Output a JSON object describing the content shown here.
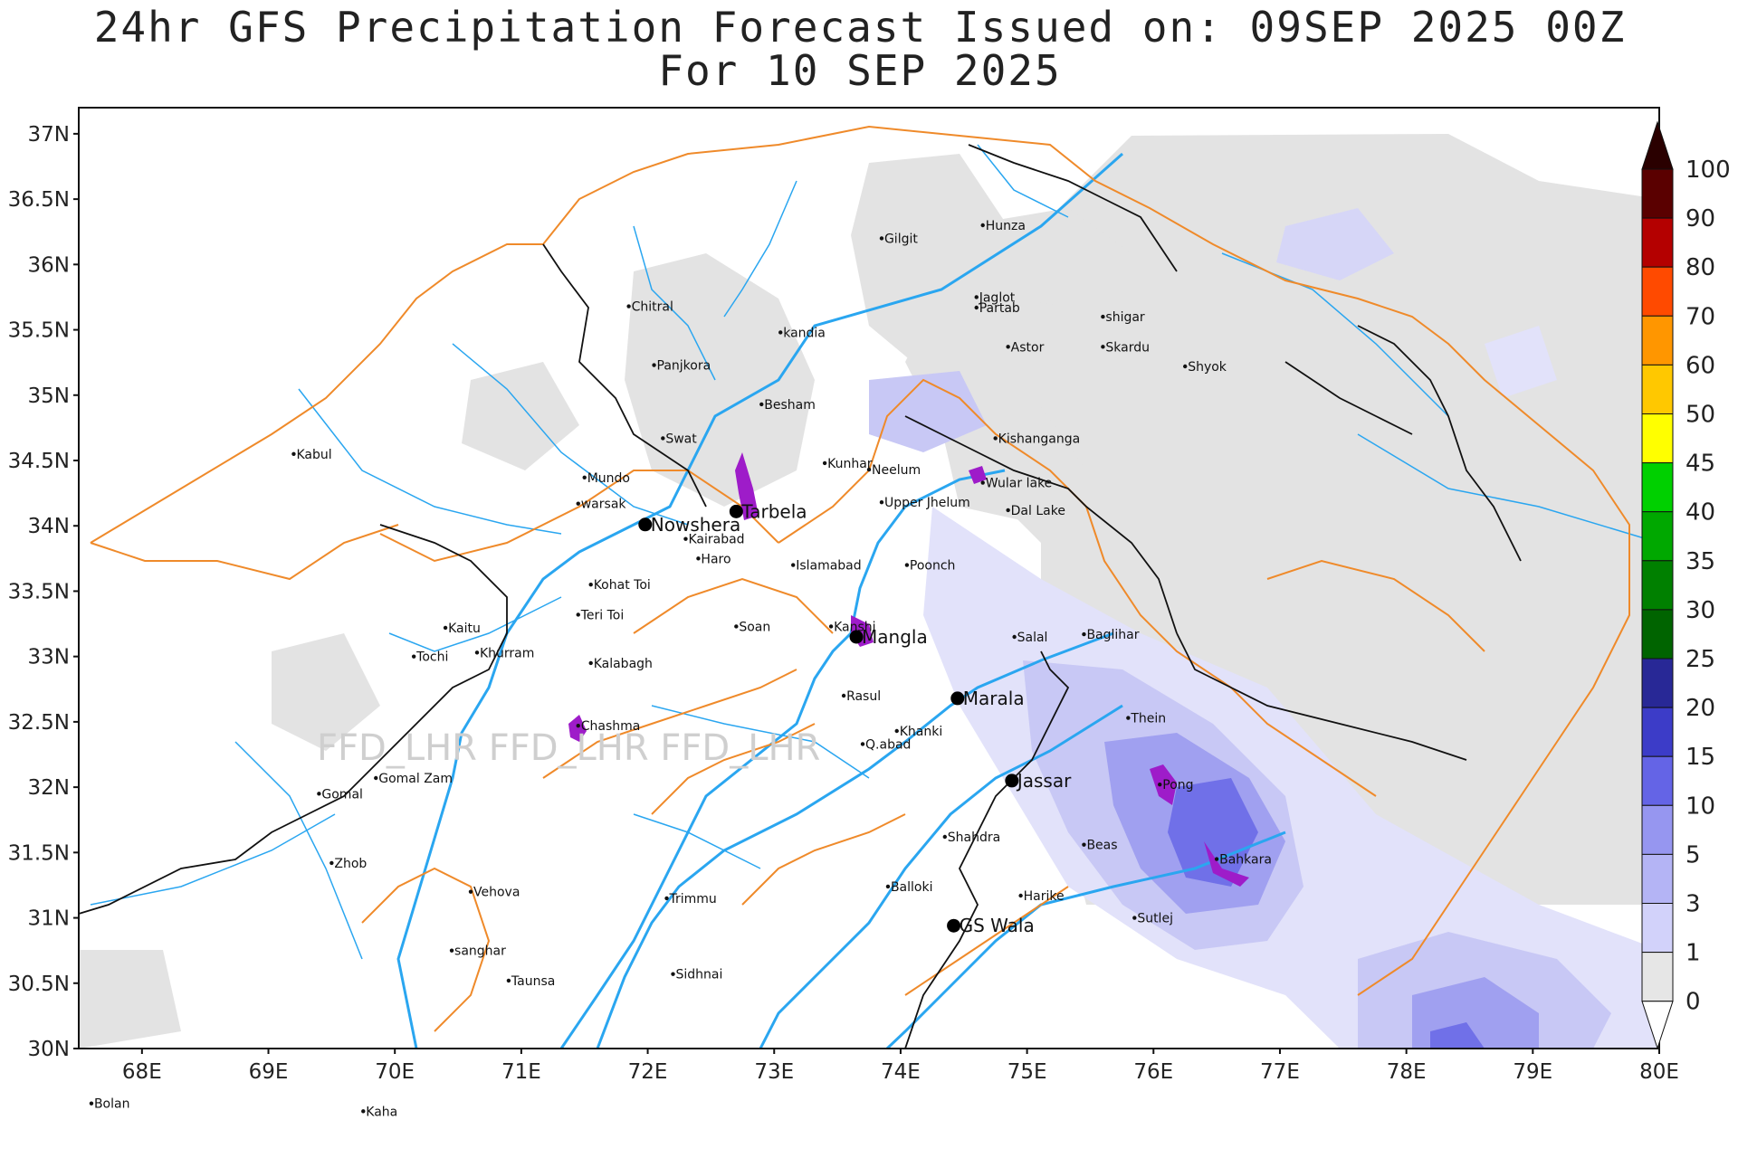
{
  "title": {
    "line1": "24hr GFS Precipitation Forecast Issued on:  09SEP 2025 00Z",
    "line2": "For 10 SEP 2025"
  },
  "watermark": "FFD_LHR FFD_LHR FFD_LHR",
  "axes": {
    "lat_labels": [
      "37N",
      "36.5N",
      "36N",
      "35.5N",
      "35N",
      "34.5N",
      "34N",
      "33.5N",
      "33N",
      "32.5N",
      "32N",
      "31.5N",
      "31N",
      "30.5N",
      "30N"
    ],
    "lon_labels": [
      "68E",
      "69E",
      "70E",
      "71E",
      "72E",
      "73E",
      "74E",
      "75E",
      "76E",
      "77E",
      "78E",
      "79E",
      "80E"
    ]
  },
  "legend": {
    "labels": [
      "100",
      "90",
      "80",
      "70",
      "60",
      "50",
      "45",
      "40",
      "35",
      "30",
      "25",
      "20",
      "15",
      "10",
      "5",
      "3",
      "1",
      "0"
    ],
    "colors": [
      "#5a0000",
      "#b40000",
      "#ff4a00",
      "#ff9600",
      "#ffc800",
      "#ffff00",
      "#00d000",
      "#00a800",
      "#008000",
      "#006400",
      "#282896",
      "#3c3cc8",
      "#6464e6",
      "#9696f0",
      "#b4b4f5",
      "#d2d2fa",
      "#e6e6e6",
      "#ffffff"
    ]
  },
  "places": [
    {
      "name": "Hunza",
      "lon": 74.65,
      "lat": 36.3
    },
    {
      "name": "Gilgit",
      "lon": 73.85,
      "lat": 36.2
    },
    {
      "name": "Jaglot",
      "lon": 74.6,
      "lat": 35.75
    },
    {
      "name": "Partab",
      "lon": 74.6,
      "lat": 35.67
    },
    {
      "name": "shigar",
      "lon": 75.6,
      "lat": 35.6
    },
    {
      "name": "Chitral",
      "lon": 71.85,
      "lat": 35.68
    },
    {
      "name": "kandia",
      "lon": 73.05,
      "lat": 35.48
    },
    {
      "name": "Astor",
      "lon": 74.85,
      "lat": 35.37
    },
    {
      "name": "Skardu",
      "lon": 75.6,
      "lat": 35.37
    },
    {
      "name": "Panjkora",
      "lon": 72.05,
      "lat": 35.23
    },
    {
      "name": "Shyok",
      "lon": 76.25,
      "lat": 35.22
    },
    {
      "name": "Besham",
      "lon": 72.9,
      "lat": 34.93
    },
    {
      "name": "Swat",
      "lon": 72.12,
      "lat": 34.67
    },
    {
      "name": "Kabul",
      "lon": 69.2,
      "lat": 34.55
    },
    {
      "name": "Kishanganga",
      "lon": 74.75,
      "lat": 34.67
    },
    {
      "name": "Kunhar",
      "lon": 73.4,
      "lat": 34.48
    },
    {
      "name": "Neelum",
      "lon": 73.75,
      "lat": 34.43
    },
    {
      "name": "Mundo",
      "lon": 71.5,
      "lat": 34.37
    },
    {
      "name": "Wular lake",
      "lon": 74.65,
      "lat": 34.33
    },
    {
      "name": "Upper Jhelum",
      "lon": 73.85,
      "lat": 34.18
    },
    {
      "name": "warsak",
      "lon": 71.45,
      "lat": 34.17
    },
    {
      "name": "Dal Lake",
      "lon": 74.85,
      "lat": 34.12
    },
    {
      "name": "Kairabad",
      "lon": 72.3,
      "lat": 33.9
    },
    {
      "name": "Haro",
      "lon": 72.4,
      "lat": 33.75
    },
    {
      "name": "Islamabad",
      "lon": 73.15,
      "lat": 33.7
    },
    {
      "name": "Poonch",
      "lon": 74.05,
      "lat": 33.7
    },
    {
      "name": "Kohat Toi",
      "lon": 71.55,
      "lat": 33.55
    },
    {
      "name": "Teri Toi",
      "lon": 71.45,
      "lat": 33.32
    },
    {
      "name": "Soan",
      "lon": 72.7,
      "lat": 33.23
    },
    {
      "name": "Kanshi",
      "lon": 73.45,
      "lat": 33.23
    },
    {
      "name": "Kaitu",
      "lon": 70.4,
      "lat": 33.22
    },
    {
      "name": "Salal",
      "lon": 74.9,
      "lat": 33.15
    },
    {
      "name": "Baglihar",
      "lon": 75.45,
      "lat": 33.17
    },
    {
      "name": "Khurram",
      "lon": 70.65,
      "lat": 33.03
    },
    {
      "name": "Tochi",
      "lon": 70.15,
      "lat": 33.0
    },
    {
      "name": "Kalabagh",
      "lon": 71.55,
      "lat": 32.95
    },
    {
      "name": "Rasul",
      "lon": 73.55,
      "lat": 32.7
    },
    {
      "name": "Thein",
      "lon": 75.8,
      "lat": 32.53
    },
    {
      "name": "Chashma",
      "lon": 71.45,
      "lat": 32.47
    },
    {
      "name": "Khanki",
      "lon": 73.97,
      "lat": 32.43
    },
    {
      "name": "Q.abad",
      "lon": 73.7,
      "lat": 32.33
    },
    {
      "name": "Pong",
      "lon": 76.05,
      "lat": 32.02
    },
    {
      "name": "Gomal Zam",
      "lon": 69.85,
      "lat": 32.07
    },
    {
      "name": "Gomal",
      "lon": 69.4,
      "lat": 31.95
    },
    {
      "name": "Shahdra",
      "lon": 74.35,
      "lat": 31.62
    },
    {
      "name": "Beas",
      "lon": 75.45,
      "lat": 31.56
    },
    {
      "name": "Bahkara",
      "lon": 76.5,
      "lat": 31.45
    },
    {
      "name": "Zhob",
      "lon": 69.5,
      "lat": 31.42
    },
    {
      "name": "Balloki",
      "lon": 73.9,
      "lat": 31.24
    },
    {
      "name": "Vehova",
      "lon": 70.6,
      "lat": 31.2
    },
    {
      "name": "Harike",
      "lon": 74.95,
      "lat": 31.17
    },
    {
      "name": "Trimmu",
      "lon": 72.15,
      "lat": 31.15
    },
    {
      "name": "Sutlej",
      "lon": 75.85,
      "lat": 31.0
    },
    {
      "name": "sanghar",
      "lon": 70.45,
      "lat": 30.75
    },
    {
      "name": "Sidhnai",
      "lon": 72.2,
      "lat": 30.57
    },
    {
      "name": "Taunsa",
      "lon": 70.9,
      "lat": 30.52
    },
    {
      "name": "Bolan",
      "lon": 67.6,
      "lat": 29.58
    },
    {
      "name": "Kaha",
      "lon": 69.75,
      "lat": 29.52
    }
  ],
  "big_places": [
    {
      "name": "Tarbela",
      "lon": 72.7,
      "lat": 34.11
    },
    {
      "name": "Nowshera",
      "lon": 71.98,
      "lat": 34.01
    },
    {
      "name": "Mangla",
      "lon": 73.65,
      "lat": 33.15
    },
    {
      "name": "Marala",
      "lon": 74.45,
      "lat": 32.68
    },
    {
      "name": "Jassar",
      "lon": 74.88,
      "lat": 32.05
    },
    {
      "name": "GS Wala",
      "lon": 74.42,
      "lat": 30.94
    }
  ]
}
